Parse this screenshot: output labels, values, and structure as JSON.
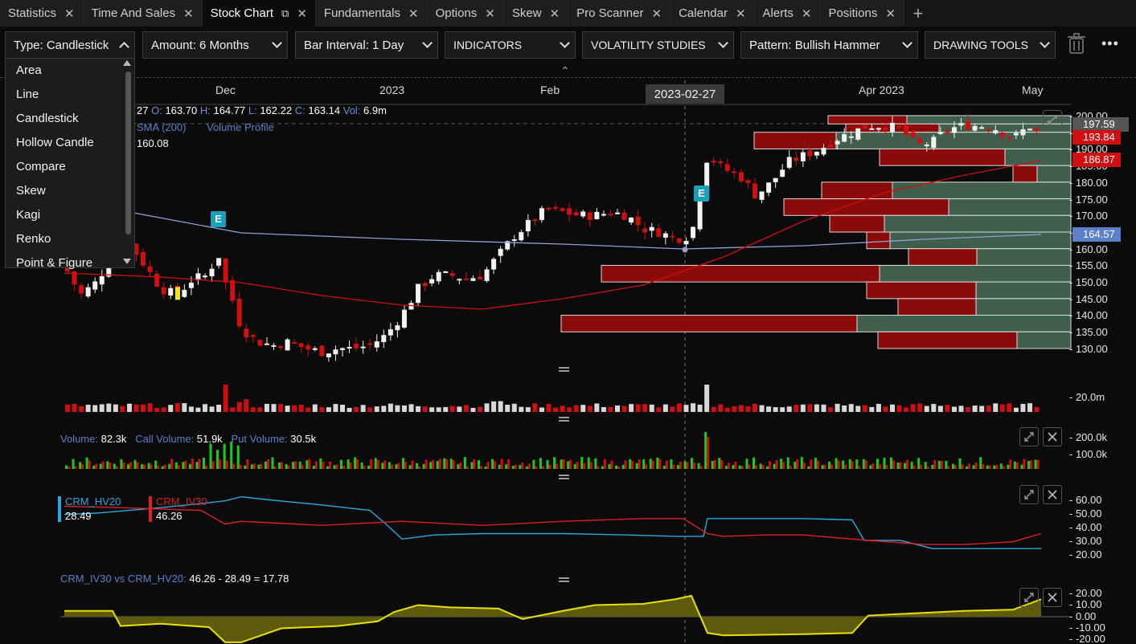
{
  "tabs": [
    {
      "label": "Statistics",
      "active": false
    },
    {
      "label": "Time And Sales",
      "active": false
    },
    {
      "label": "Stock Chart",
      "active": true
    },
    {
      "label": "Fundamentals",
      "active": false
    },
    {
      "label": "Options",
      "active": false
    },
    {
      "label": "Skew",
      "active": false
    },
    {
      "label": "Pro Scanner",
      "active": false
    },
    {
      "label": "Calendar",
      "active": false
    },
    {
      "label": "Alerts",
      "active": false
    },
    {
      "label": "Positions",
      "active": false
    }
  ],
  "toolbar": {
    "type": "Type: Candlestick",
    "amount": "Amount: 6 Months",
    "interval": "Bar Interval: 1 Day",
    "indicators": "INDICATORS",
    "volatility": "VOLATILITY STUDIES",
    "pattern": "Pattern: Bullish Hammer",
    "drawing": "DRAWING TOOLS"
  },
  "type_dropdown": {
    "options": [
      "Area",
      "Line",
      "Candlestick",
      "Hollow Candle",
      "Compare",
      "Skew",
      "Kagi",
      "Renko",
      "Point & Figure"
    ]
  },
  "date_axis": [
    "Dec",
    "2023",
    "Feb",
    "Apr 2023",
    "May"
  ],
  "crosshair_date": "2023-02-27",
  "ohlc": {
    "prefix": "27",
    "o_label": "O:",
    "o": "163.70",
    "h_label": "H:",
    "h": "164.77",
    "l_label": "L:",
    "l": "162.22",
    "c_label": "C:",
    "c": "163.14",
    "v_label": "Vol:",
    "v": "6.9m"
  },
  "studies": {
    "sma": "SMA (200)",
    "vp": "Volume Profile",
    "sma_value": "160.08"
  },
  "price_axis": [
    "200.00",
    "195.00",
    "190.00",
    "185.00",
    "180.00",
    "175.00",
    "170.00",
    "165.00",
    "160.00",
    "155.00",
    "150.00",
    "145.00",
    "140.00",
    "135.00",
    "130.00"
  ],
  "price_tags": {
    "last": "197.59",
    "red1": "193.84",
    "red2": "186.87",
    "sma": "164.57"
  },
  "earnings_badge": "E",
  "volume_axis": "20.0m",
  "options_volume": {
    "vol_label": "Volume:",
    "vol": "82.3k",
    "call_label": "Call Volume:",
    "call": "51.9k",
    "put_label": "Put Volume:",
    "put": "30.5k",
    "axis": [
      "200.0k",
      "100.0k"
    ]
  },
  "hv_iv": {
    "hv_name": "CRM_HV20",
    "hv_value": "28.49",
    "iv_name": "CRM_IV30",
    "iv_value": "46.26",
    "axis": [
      "60.00",
      "50.00",
      "40.00",
      "30.00",
      "20.00"
    ],
    "hv_color": "#29a8e0",
    "iv_color": "#e02020"
  },
  "spread": {
    "label": "CRM_IV30 vs CRM_HV20:",
    "formula": "46.26 - 28.49 = 17.78",
    "axis": [
      "20.00",
      "10.00",
      "0.00",
      "-10.00",
      "-20.00"
    ],
    "color": "#e8e000"
  },
  "colors": {
    "up": "#f2f2f2",
    "down": "#d01010",
    "accent": "#1aa0b8",
    "vp_down": "#8b0a0a",
    "vp_up": "#3f5e4c"
  }
}
